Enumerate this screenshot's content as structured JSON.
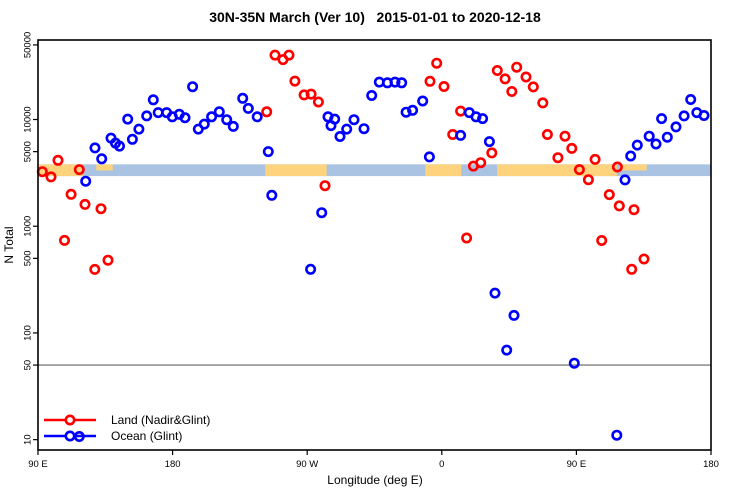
{
  "chart_data": {
    "type": "scatter",
    "title": "30N-35N March (Ver 10)   2015-01-01 to 2020-12-18",
    "xlabel": "Longitude (deg E)",
    "ylabel": "N Total",
    "x_axis": {
      "range": [
        90,
        540
      ],
      "ticks": [
        {
          "lon": 90,
          "label": "90 E"
        },
        {
          "lon": 180,
          "label": "180"
        },
        {
          "lon": 270,
          "label": "90 W"
        },
        {
          "lon": 360,
          "label": "0"
        },
        {
          "lon": 450,
          "label": "90 E"
        },
        {
          "lon": 540,
          "label": "180"
        }
      ]
    },
    "y_axis": {
      "scale": "log",
      "range": [
        8,
        55600
      ],
      "ticks": [
        {
          "value": 50000,
          "label": "50000"
        },
        {
          "value": 10000,
          "label": "10000"
        },
        {
          "value": 5000,
          "label": "5000"
        },
        {
          "value": 1000,
          "label": "1000"
        },
        {
          "value": 500,
          "label": "500"
        },
        {
          "value": 100,
          "label": "100"
        },
        {
          "value": 50,
          "label": "50"
        },
        {
          "value": 10,
          "label": "10"
        }
      ]
    },
    "reference_line": {
      "value": 50,
      "color": "#7f7f7f"
    },
    "surface_band": {
      "N_top": 3800,
      "N_bottom": 2950,
      "ocean_color": "#aac3e2",
      "land_color": "#fdd37d",
      "ocean_range": [
        90,
        540
      ],
      "land_segments": [
        {
          "from": 90,
          "to": 120,
          "part": "full"
        },
        {
          "from": 129,
          "to": 140,
          "part": "top"
        },
        {
          "from": 242,
          "to": 283,
          "part": "full"
        },
        {
          "from": 349,
          "to": 373,
          "part": "full"
        },
        {
          "from": 397,
          "to": 477,
          "part": "full"
        },
        {
          "from": 479,
          "to": 497,
          "part": "top"
        }
      ]
    },
    "marker": {
      "radius": 4.2,
      "stroke_width": 2.6
    },
    "series": [
      {
        "name": "Land (Nadir&Glint)",
        "color": "#ff0000",
        "points": [
          [
            92.9,
            3240
          ],
          [
            98.7,
            2900
          ],
          [
            103.4,
            4150
          ],
          [
            107.7,
            737
          ],
          [
            112.1,
            1990
          ],
          [
            117.6,
            3390
          ],
          [
            121.4,
            1600
          ],
          [
            128.0,
            394
          ],
          [
            132.1,
            1460
          ],
          [
            136.8,
            480
          ],
          [
            242.9,
            11800
          ],
          [
            248.5,
            40100
          ],
          [
            253.8,
            36400
          ],
          [
            257.8,
            40100
          ],
          [
            261.8,
            22900
          ],
          [
            267.9,
            17000
          ],
          [
            272.6,
            17300
          ],
          [
            277.5,
            14600
          ],
          [
            281.9,
            2400
          ],
          [
            352.1,
            22800
          ],
          [
            356.6,
            33700
          ],
          [
            361.5,
            20400
          ],
          [
            367.3,
            7240
          ],
          [
            372.6,
            12000
          ],
          [
            376.6,
            776
          ],
          [
            381.1,
            3660
          ],
          [
            386.0,
            3940
          ],
          [
            393.4,
            4870
          ],
          [
            397.1,
            28800
          ],
          [
            402.3,
            24000
          ],
          [
            406.8,
            18300
          ],
          [
            410.1,
            30900
          ],
          [
            416.3,
            25000
          ],
          [
            421.2,
            20200
          ],
          [
            427.5,
            14300
          ],
          [
            430.6,
            7240
          ],
          [
            437.6,
            4390
          ],
          [
            442.4,
            6980
          ],
          [
            446.9,
            5360
          ],
          [
            452.0,
            3390
          ],
          [
            458.0,
            2730
          ],
          [
            462.5,
            4230
          ],
          [
            466.9,
            735
          ],
          [
            472.0,
            1980
          ],
          [
            477.4,
            3590
          ],
          [
            478.7,
            1550
          ],
          [
            487.0,
            395
          ],
          [
            488.5,
            1430
          ],
          [
            495.2,
            493
          ]
        ]
      },
      {
        "name": "Ocean (Glint)",
        "color": "#0000ff",
        "points": [
          [
            117.6,
            10.7
          ],
          [
            121.9,
            2640
          ],
          [
            128.1,
            5420
          ],
          [
            132.6,
            4280
          ],
          [
            138.8,
            6700
          ],
          [
            141.8,
            6010
          ],
          [
            144.5,
            5640
          ],
          [
            150.0,
            10100
          ],
          [
            153.1,
            6520
          ],
          [
            157.5,
            8130
          ],
          [
            162.7,
            10800
          ],
          [
            167.1,
            15300
          ],
          [
            170.4,
            11600
          ],
          [
            176.0,
            11600
          ],
          [
            179.8,
            10600
          ],
          [
            184.5,
            11200
          ],
          [
            188.3,
            10400
          ],
          [
            193.4,
            20300
          ],
          [
            197.2,
            8130
          ],
          [
            201.2,
            9060
          ],
          [
            206.1,
            10600
          ],
          [
            211.2,
            11800
          ],
          [
            216.2,
            9970
          ],
          [
            220.6,
            8620
          ],
          [
            226.9,
            15800
          ],
          [
            230.6,
            12700
          ],
          [
            236.6,
            10600
          ],
          [
            244.0,
            5000
          ],
          [
            246.3,
            1950
          ],
          [
            272.3,
            395
          ],
          [
            279.7,
            1340
          ],
          [
            283.9,
            10600
          ],
          [
            285.9,
            8770
          ],
          [
            288.4,
            10100
          ],
          [
            291.9,
            6930
          ],
          [
            296.4,
            8130
          ],
          [
            301.3,
            9970
          ],
          [
            308.0,
            8200
          ],
          [
            313.1,
            16800
          ],
          [
            318.2,
            22400
          ],
          [
            323.6,
            22100
          ],
          [
            328.7,
            22400
          ],
          [
            333.2,
            22100
          ],
          [
            336.1,
            11700
          ],
          [
            340.5,
            12200
          ],
          [
            347.2,
            14900
          ],
          [
            351.7,
            4460
          ],
          [
            372.6,
            7090
          ],
          [
            378.4,
            11600
          ],
          [
            382.9,
            10600
          ],
          [
            387.3,
            10200
          ],
          [
            391.8,
            6210
          ],
          [
            395.6,
            236
          ],
          [
            403.4,
            69
          ],
          [
            408.3,
            146
          ],
          [
            448.6,
            52
          ],
          [
            477.0,
            11
          ],
          [
            482.5,
            2720
          ],
          [
            486.3,
            4550
          ],
          [
            490.7,
            5760
          ],
          [
            498.7,
            6980
          ],
          [
            503.2,
            5890
          ],
          [
            507.0,
            10200
          ],
          [
            510.8,
            6830
          ],
          [
            516.6,
            8520
          ],
          [
            522.0,
            10800
          ],
          [
            526.4,
            15400
          ],
          [
            530.5,
            11600
          ],
          [
            535.3,
            10900
          ]
        ]
      }
    ]
  },
  "legend": {
    "items": [
      {
        "label": "Land (Nadir&Glint)",
        "color": "#ff0000"
      },
      {
        "label": "Ocean (Glint)",
        "color": "#0000ff"
      }
    ]
  }
}
